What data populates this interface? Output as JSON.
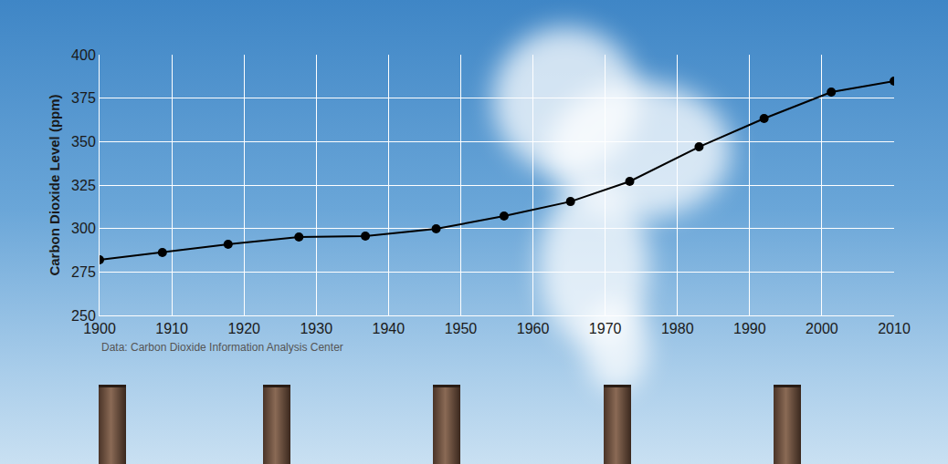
{
  "chart_data": {
    "type": "line",
    "y_label": "Carbon Dioxide Level (ppm)",
    "source": "Data: Carbon Dioxide Information Analysis Center",
    "x": [
      1900,
      1908.7,
      1917.8,
      1927.6,
      1936.8,
      1946.6,
      1956,
      1965.2,
      1973.4,
      1983,
      1992,
      2001.3,
      2010
    ],
    "values": [
      282,
      286.2,
      290.9,
      295.1,
      295.6,
      299.8,
      307.2,
      315.5,
      327.1,
      347,
      363.3,
      378.5,
      384.8
    ],
    "color": "#000000",
    "marker": "circle",
    "xlim": [
      1900,
      2010
    ],
    "xticks": [
      1900,
      1910,
      1920,
      1930,
      1940,
      1950,
      1960,
      1970,
      1980,
      1990,
      2000,
      2010
    ],
    "ylim": [
      250,
      400
    ],
    "yticks": [
      250,
      275,
      300,
      325,
      350,
      375,
      400
    ],
    "grid": true
  }
}
